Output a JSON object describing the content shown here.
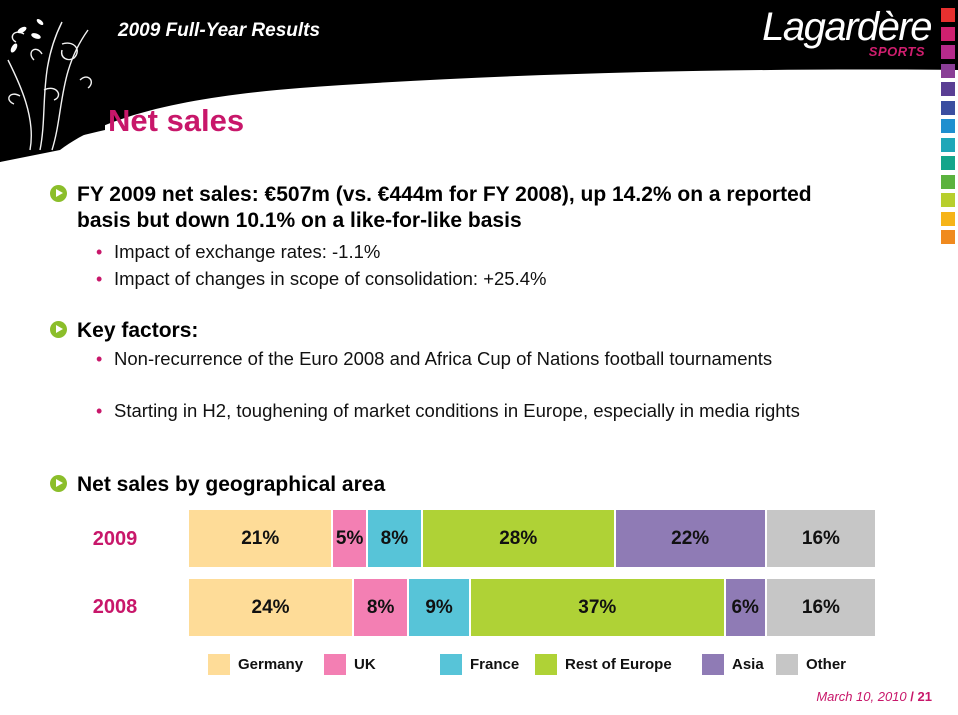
{
  "header": {
    "title": "2009 Full-Year Results",
    "logo_main": "Lagardère",
    "logo_sub": "SPORTS",
    "swatch_colors": [
      "#e8302f",
      "#d0206f",
      "#b62a8b",
      "#8a3e96",
      "#5a3e94",
      "#3b4ea0",
      "#1f8fcf",
      "#1fa7b8",
      "#14a58a",
      "#5bb23e",
      "#b8cf2d",
      "#f6b418",
      "#f08a1e"
    ]
  },
  "page_title": "Net sales",
  "bullets": [
    {
      "text": "FY 2009 net sales: €507m (vs. €444m for FY 2008), up 14.2% on a reported basis but down 10.1% on a like-for-like basis",
      "subs": [
        "Impact of exchange rates: -1.1%",
        "Impact of changes in scope of consolidation: +25.4%"
      ]
    },
    {
      "text": "Key factors:",
      "subs": [
        "Non-recurrence of the Euro 2008 and Africa Cup of Nations football tournaments",
        "Starting in H2, toughening of market conditions in Europe, especially in media rights"
      ]
    },
    {
      "text": "Net sales by geographical area",
      "subs": []
    }
  ],
  "chart_data": {
    "type": "bar",
    "stacked": true,
    "orientation": "horizontal",
    "categories": [
      "2009",
      "2008"
    ],
    "series": [
      {
        "name": "Germany",
        "color": "#fedc98",
        "values": [
          21,
          24
        ],
        "labels": [
          "21%",
          "24%"
        ]
      },
      {
        "name": "UK",
        "color": "#f37fb3",
        "values": [
          5,
          8
        ],
        "labels": [
          "5%",
          "8%"
        ]
      },
      {
        "name": "France",
        "color": "#57c4d8",
        "values": [
          8,
          9
        ],
        "labels": [
          "8%",
          "9%"
        ]
      },
      {
        "name": "Rest of Europe",
        "color": "#afd236",
        "values": [
          28,
          37
        ],
        "labels": [
          "28%",
          "37%"
        ]
      },
      {
        "name": "Asia",
        "color": "#8f7bb5",
        "values": [
          22,
          6
        ],
        "labels": [
          "22%",
          "6%"
        ]
      },
      {
        "name": "Other",
        "color": "#c6c6c6",
        "values": [
          16,
          16
        ],
        "labels": [
          "16%",
          "16%"
        ]
      }
    ],
    "legend": "bottom"
  },
  "footer": {
    "date": "March 10, 2010",
    "separator": "/",
    "page": "21"
  }
}
